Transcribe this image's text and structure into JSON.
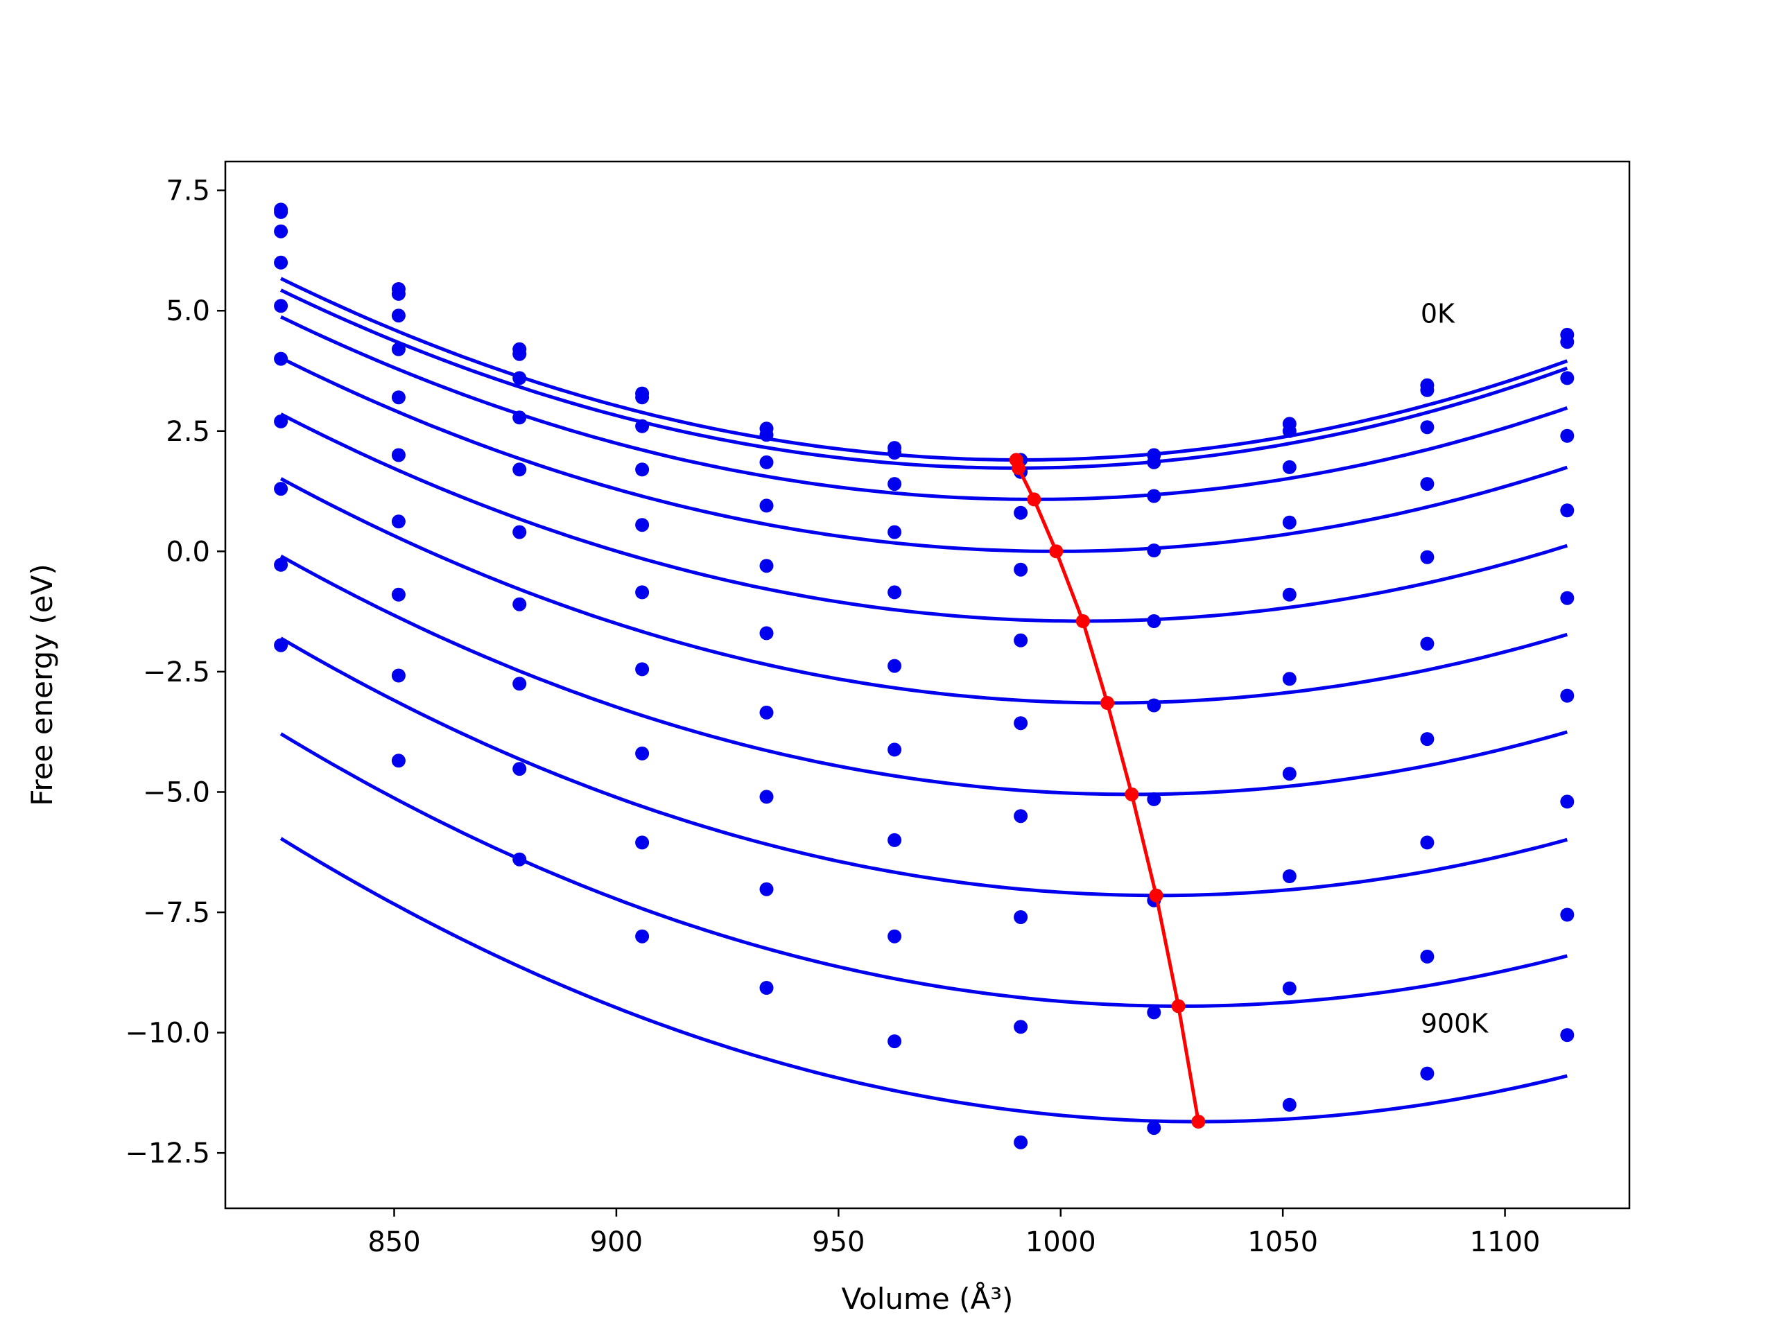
{
  "chart_data": {
    "type": "scatter",
    "xlabel": "Volume (Å³)",
    "ylabel": "Free energy (eV)",
    "xlim": [
      812,
      1128
    ],
    "ylim": [
      -13.65,
      8.1
    ],
    "xticks": [
      850,
      900,
      950,
      1000,
      1050,
      1100
    ],
    "xtick_labels": [
      "850",
      "900",
      "950",
      "1000",
      "1050",
      "1100"
    ],
    "yticks": [
      7.5,
      5.0,
      2.5,
      0.0,
      -2.5,
      -5.0,
      -7.5,
      -10.0,
      -12.5
    ],
    "ytick_labels": [
      "7.5",
      "5.0",
      "2.5",
      "0.0",
      "−2.5",
      "−5.0",
      "−7.5",
      "−10.0",
      "−12.5"
    ],
    "grid": false,
    "legend": "none",
    "annotations": [
      {
        "text": "0K",
        "x": 1081,
        "y": 4.75
      },
      {
        "text": "900K",
        "x": 1081,
        "y": -10.0
      }
    ],
    "colors": {
      "points": "#0000ee",
      "fits": "#0000ee",
      "minimum_path": "#ff0000"
    },
    "volumes": [
      824.5,
      851.0,
      878.2,
      905.8,
      933.8,
      962.6,
      991.0,
      1021.0,
      1051.5,
      1082.5,
      1114.0
    ],
    "series": [
      {
        "data": [
          7.1,
          5.45,
          4.2,
          3.28,
          2.55,
          2.15,
          1.9,
          2.0,
          2.65,
          3.45,
          4.5
        ],
        "fit": {
          "a": 0.000136,
          "v0": 991,
          "f0": 1.9
        }
      },
      {
        "data": [
          7.05,
          5.35,
          4.1,
          3.2,
          2.42,
          2.05,
          1.65,
          1.85,
          2.5,
          3.35,
          4.35
        ],
        "fit": {
          "a": 0.000135,
          "v0": 990,
          "f0": 1.73
        }
      },
      {
        "data": [
          6.65,
          4.9,
          3.6,
          2.6,
          1.85,
          1.4,
          0.8,
          1.15,
          1.75,
          2.58,
          3.6
        ],
        "fit": {
          "a": 0.000132,
          "v0": 994,
          "f0": 1.08
        }
      },
      {
        "data": [
          6.0,
          4.2,
          2.78,
          1.7,
          0.95,
          0.4,
          -0.38,
          0.02,
          0.6,
          1.4,
          2.4
        ],
        "fit": {
          "a": 0.000132,
          "v0": 999,
          "f0": 0.0
        }
      },
      {
        "data": [
          5.1,
          3.2,
          1.7,
          0.55,
          -0.3,
          -0.85,
          -1.85,
          -1.45,
          -0.9,
          -0.12,
          0.85
        ],
        "fit": {
          "a": 0.000132,
          "v0": 1005,
          "f0": -1.45
        }
      },
      {
        "data": [
          4.0,
          2.0,
          0.4,
          -0.85,
          -1.7,
          -2.38,
          -3.57,
          -3.2,
          -2.65,
          -1.92,
          -0.97
        ],
        "fit": {
          "a": 0.000134,
          "v0": 1011,
          "f0": -3.15
        }
      },
      {
        "data": [
          2.7,
          0.62,
          -1.1,
          -2.45,
          -3.35,
          -4.12,
          -5.5,
          -5.15,
          -4.62,
          -3.9,
          -3.0
        ],
        "fit": {
          "a": 0.000135,
          "v0": 1016,
          "f0": -5.05
        }
      },
      {
        "data": [
          1.3,
          -0.9,
          -2.75,
          -4.2,
          -5.1,
          -6.0,
          -7.6,
          -7.25,
          -6.75,
          -6.05,
          -5.2
        ],
        "fit": {
          "a": 0.000137,
          "v0": 1022,
          "f0": -7.15
        }
      },
      {
        "data": [
          -0.28,
          -2.58,
          -4.52,
          -6.05,
          -7.02,
          -8.0,
          -9.88,
          -9.58,
          -9.08,
          -8.42,
          -7.55
        ],
        "fit": {
          "a": 0.000138,
          "v0": 1027,
          "f0": -9.45
        }
      },
      {
        "data": [
          -1.95,
          -4.35,
          -6.4,
          -8.0,
          -9.07,
          -10.18,
          -12.28,
          -11.98,
          -11.5,
          -10.85,
          -10.05
        ],
        "fit": {
          "a": 0.000138,
          "v0": 1031,
          "f0": -11.85
        }
      }
    ],
    "minimum_path": {
      "x": [
        990.0,
        990.5,
        994.0,
        999.0,
        1005.0,
        1010.5,
        1016.0,
        1021.5,
        1026.5,
        1031.0
      ],
      "y": [
        1.9,
        1.73,
        1.08,
        0.0,
        -1.45,
        -3.15,
        -5.05,
        -7.15,
        -9.45,
        -11.85
      ]
    }
  }
}
